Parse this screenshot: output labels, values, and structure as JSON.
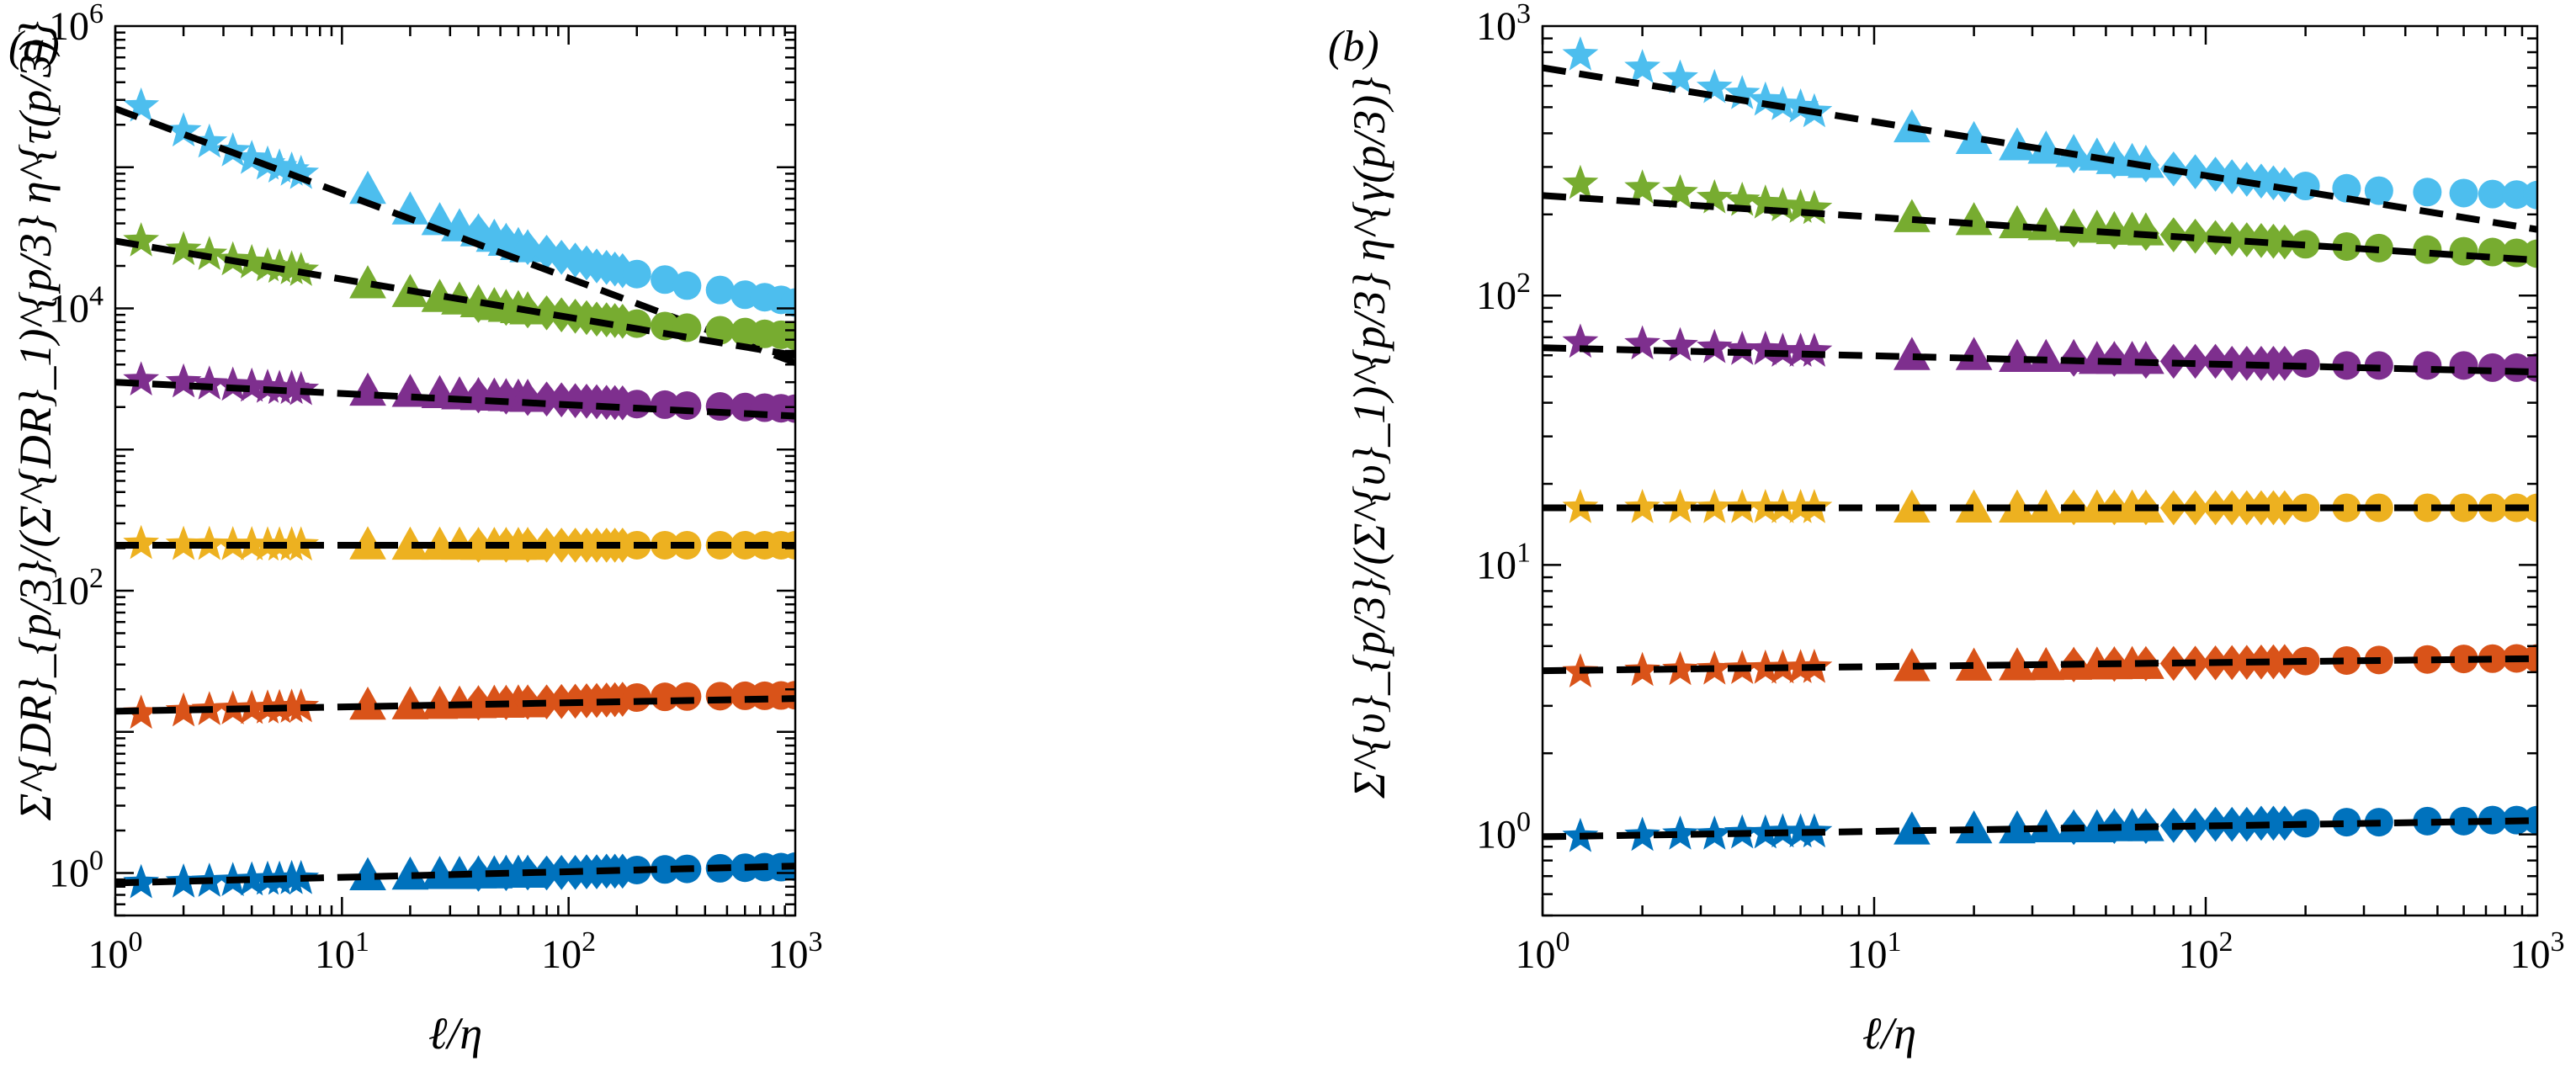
{
  "chart_data": [
    {
      "type": "scatter",
      "panel_label": "(a)",
      "xlabel": "ℓ/η",
      "ylabel": "Σ^{DR}_{p/3}/(Σ^{DR}_1)^{p/3} η^{τ(p/3)}",
      "x_scale": "log",
      "y_scale": "log",
      "xlim": [
        1,
        1000
      ],
      "ylim": [
        0.5,
        1000000
      ],
      "x_ticks": [
        1,
        10,
        100,
        1000
      ],
      "x_tick_labels": [
        "10^0",
        "10^1",
        "10^2",
        "10^3"
      ],
      "y_ticks": [
        1,
        100,
        10000,
        1000000
      ],
      "y_tick_labels": [
        "10^0",
        "10^2",
        "10^4",
        "10^6"
      ],
      "grid": false,
      "legend": "none",
      "marker_groups": [
        {
          "marker": "star",
          "x": [
            1.3,
            2.0,
            2.6,
            3.3,
            4.0,
            4.7,
            5.3,
            6.0,
            6.6
          ]
        },
        {
          "marker": "triangle",
          "x": [
            13,
            20,
            27,
            33,
            40,
            47,
            53,
            60,
            66
          ]
        },
        {
          "marker": "diamond",
          "x": [
            40,
            53,
            66,
            80,
            93,
            107,
            120,
            133,
            147,
            160,
            173
          ]
        },
        {
          "marker": "circle",
          "x": [
            200,
            266,
            333,
            466,
            600,
            733,
            866,
            1000
          ]
        }
      ],
      "series": [
        {
          "color": "#4DBEEE",
          "fit": [
            260000,
            -0.6
          ],
          "values": {
            "star": [
              270000.0,
              180000.0,
              150000.0,
              130000.0,
              115000.0,
              105000.0,
              100000.0,
              95000.0,
              90000.0
            ],
            "triangle": [
              70000.0,
              50000.0,
              42000.0,
              38000.0,
              35000.0,
              32000.0,
              30000.0,
              28000.0,
              27000.0
            ],
            "diamond": [
              35000.0,
              30000.0,
              27000.0,
              25000.0,
              23000.0,
              22000.0,
              21000.0,
              20000.0,
              19500.0,
              19000.0,
              18500.0
            ],
            "circle": [
              17500.0,
              16000.0,
              14500.0,
              13500.0,
              12500.0,
              12000.0,
              11500.0,
              11000.0
            ]
          }
        },
        {
          "color": "#77AC30",
          "fit": [
            30000,
            -0.27
          ],
          "values": {
            "star": [
              30000.0,
              26000.0,
              24000.0,
              22000.0,
              21000.0,
              20000.0,
              19500.0,
              19000.0,
              18500.0
            ],
            "triangle": [
              15000.0,
              13000.0,
              12000.0,
              11500.0,
              11000.0,
              10500.0,
              10200.0,
              10000.0,
              9800.0
            ],
            "diamond": [
              10500.0,
              10000.0,
              9600.0,
              9300.0,
              9000.0,
              8800.0,
              8600.0,
              8400.0,
              8300.0,
              8200.0,
              8100.0
            ],
            "circle": [
              7800.0,
              7500.0,
              7300.0,
              7000.0,
              6800.0,
              6600.0,
              6500.0,
              6400.0
            ]
          }
        },
        {
          "color": "#7E2F8E",
          "fit": [
            3000,
            -0.08
          ],
          "values": {
            "star": [
              3100.0,
              3000.0,
              2900.0,
              2850.0,
              2800.0,
              2750.0,
              2700.0,
              2700.0,
              2650.0
            ],
            "triangle": [
              2600.0,
              2550.0,
              2500.0,
              2450.0,
              2420.0,
              2400.0,
              2380.0,
              2360.0,
              2350.0
            ],
            "diamond": [
              2400.0,
              2350.0,
              2300.0,
              2280.0,
              2250.0,
              2220.0,
              2200.0,
              2180.0,
              2160.0,
              2150.0,
              2140.0
            ],
            "circle": [
              2100.0,
              2080.0,
              2050.0,
              2020.0,
              2000.0,
              1980.0,
              1960.0,
              1950.0
            ]
          }
        },
        {
          "color": "#EDB120",
          "fit": [
            210,
            0.0
          ],
          "values": {
            "star": [
              215,
              212,
              212,
              211,
              211,
              210,
              210,
              210,
              210
            ],
            "triangle": [
              212,
              211,
              211,
              211,
              210,
              210,
              210,
              210,
              210
            ],
            "diamond": [
              210,
              210,
              210,
              210,
              210,
              210,
              210,
              210,
              210,
              210,
              210
            ],
            "circle": [
              210,
              210,
              210,
              210,
              210,
              210,
              210,
              210
            ]
          }
        },
        {
          "color": "#D95319",
          "fit": [
            14,
            0.03
          ],
          "values": {
            "star": [
              13.5,
              14,
              14.3,
              14.5,
              14.6,
              14.7,
              14.8,
              14.9,
              15
            ],
            "triangle": [
              15.5,
              15.6,
              15.7,
              15.8,
              15.9,
              16,
              16,
              16.1,
              16.1
            ],
            "diamond": [
              16,
              16.1,
              16.2,
              16.3,
              16.4,
              16.5,
              16.6,
              16.7,
              16.8,
              16.9,
              17
            ],
            "circle": [
              17.5,
              17.7,
              17.8,
              17.9,
              18,
              18,
              18.1,
              18.2
            ]
          }
        },
        {
          "color": "#0072BD",
          "fit": [
            0.85,
            0.04
          ],
          "values": {
            "star": [
              0.85,
              0.86,
              0.87,
              0.88,
              0.89,
              0.9,
              0.9,
              0.91,
              0.91
            ],
            "triangle": [
              0.96,
              0.97,
              0.98,
              0.98,
              0.99,
              0.99,
              1.0,
              1.0,
              1.0
            ],
            "diamond": [
              0.98,
              0.99,
              1.0,
              1.0,
              1.01,
              1.01,
              1.02,
              1.02,
              1.03,
              1.03,
              1.03
            ],
            "circle": [
              1.05,
              1.06,
              1.07,
              1.08,
              1.09,
              1.1,
              1.1,
              1.11
            ]
          }
        }
      ]
    },
    {
      "type": "scatter",
      "panel_label": "(b)",
      "xlabel": "ℓ/η",
      "ylabel": "Σ^{υ}_{p/3}/(Σ^{υ}_1)^{p/3} η^{γ(p/3)}",
      "x_scale": "log",
      "y_scale": "log",
      "xlim": [
        1,
        1000
      ],
      "ylim": [
        0.5,
        1000
      ],
      "x_ticks": [
        1,
        10,
        100,
        1000
      ],
      "x_tick_labels": [
        "10^0",
        "10^1",
        "10^2",
        "10^3"
      ],
      "y_ticks": [
        1,
        10,
        100,
        1000
      ],
      "y_tick_labels": [
        "10^0",
        "10^1",
        "10^2",
        "10^3"
      ],
      "grid": false,
      "legend": "none",
      "marker_groups": [
        {
          "marker": "star",
          "x": [
            1.3,
            2.0,
            2.6,
            3.3,
            4.0,
            4.7,
            5.3,
            6.0,
            6.6
          ]
        },
        {
          "marker": "triangle",
          "x": [
            13,
            20,
            27,
            33,
            40,
            47,
            53,
            60,
            66
          ]
        },
        {
          "marker": "diamond",
          "x": [
            40,
            53,
            66,
            80,
            93,
            107,
            120,
            133,
            147,
            160,
            173
          ]
        },
        {
          "marker": "circle",
          "x": [
            200,
            266,
            333,
            466,
            600,
            733,
            866,
            1000
          ]
        }
      ],
      "series": [
        {
          "color": "#4DBEEE",
          "fit": [
            700,
            -0.2
          ],
          "values": {
            "star": [
              780,
              700,
              640,
              590,
              560,
              530,
              510,
              500,
              480
            ],
            "triangle": [
              420,
              380,
              360,
              350,
              340,
              330,
              320,
              315,
              310
            ],
            "diamond": [
              330,
              315,
              305,
              295,
              288,
              282,
              276,
              270,
              266,
              262,
              258
            ],
            "circle": [
              255,
              250,
              245,
              242,
              240,
              238,
              237,
              236
            ]
          }
        },
        {
          "color": "#77AC30",
          "fit": [
            235,
            -0.08
          ],
          "values": {
            "star": [
              260,
              250,
              240,
              230,
              225,
              220,
              215,
              212,
              210
            ],
            "triangle": [
              195,
              190,
              185,
              182,
              180,
              178,
              176,
              175,
              174
            ],
            "diamond": [
              175,
              172,
              170,
              168,
              166,
              164,
              162,
              161,
              160,
              159,
              158
            ],
            "circle": [
              155,
              152,
              150,
              148,
              146,
              145,
              144,
              143
            ]
          }
        },
        {
          "color": "#7E2F8E",
          "fit": [
            64,
            -0.03
          ],
          "values": {
            "star": [
              67,
              66,
              65,
              64,
              63,
              63,
              62,
              62,
              62
            ],
            "triangle": [
              60,
              60,
              59,
              59,
              59,
              58,
              58,
              58,
              58
            ],
            "diamond": [
              58,
              58,
              57,
              57,
              57,
              57,
              56,
              56,
              56,
              56,
              56
            ],
            "circle": [
              56,
              55,
              55,
              55,
              55,
              54,
              54,
              54
            ]
          }
        },
        {
          "color": "#EDB120",
          "fit": [
            16.3,
            0.0
          ],
          "values": {
            "star": [
              16.3,
              16.3,
              16.3,
              16.3,
              16.3,
              16.3,
              16.3,
              16.3,
              16.3
            ],
            "triangle": [
              16.3,
              16.3,
              16.3,
              16.3,
              16.3,
              16.3,
              16.3,
              16.3,
              16.3
            ],
            "diamond": [
              16.3,
              16.3,
              16.3,
              16.3,
              16.3,
              16.3,
              16.3,
              16.3,
              16.3,
              16.3,
              16.3
            ],
            "circle": [
              16.3,
              16.3,
              16.3,
              16.3,
              16.3,
              16.3,
              16.3,
              16.3
            ]
          }
        },
        {
          "color": "#D95319",
          "fit": [
            4.05,
            0.015
          ],
          "values": {
            "star": [
              4.0,
              4.05,
              4.08,
              4.1,
              4.12,
              4.13,
              4.14,
              4.15,
              4.16
            ],
            "triangle": [
              4.2,
              4.22,
              4.23,
              4.24,
              4.25,
              4.26,
              4.27,
              4.28,
              4.28
            ],
            "diamond": [
              4.26,
              4.28,
              4.3,
              4.31,
              4.32,
              4.33,
              4.34,
              4.35,
              4.36,
              4.37,
              4.38
            ],
            "circle": [
              4.4,
              4.42,
              4.44,
              4.46,
              4.48,
              4.49,
              4.5,
              4.5
            ]
          }
        },
        {
          "color": "#0072BD",
          "fit": [
            0.98,
            0.02
          ],
          "values": {
            "star": [
              0.98,
              0.99,
              1.0,
              1.0,
              1.01,
              1.01,
              1.02,
              1.02,
              1.02
            ],
            "triangle": [
              1.04,
              1.05,
              1.05,
              1.06,
              1.06,
              1.06,
              1.07,
              1.07,
              1.07
            ],
            "diamond": [
              1.06,
              1.07,
              1.07,
              1.08,
              1.08,
              1.09,
              1.09,
              1.09,
              1.1,
              1.1,
              1.1
            ],
            "circle": [
              1.1,
              1.11,
              1.11,
              1.12,
              1.12,
              1.13,
              1.13,
              1.13
            ]
          }
        }
      ]
    }
  ]
}
